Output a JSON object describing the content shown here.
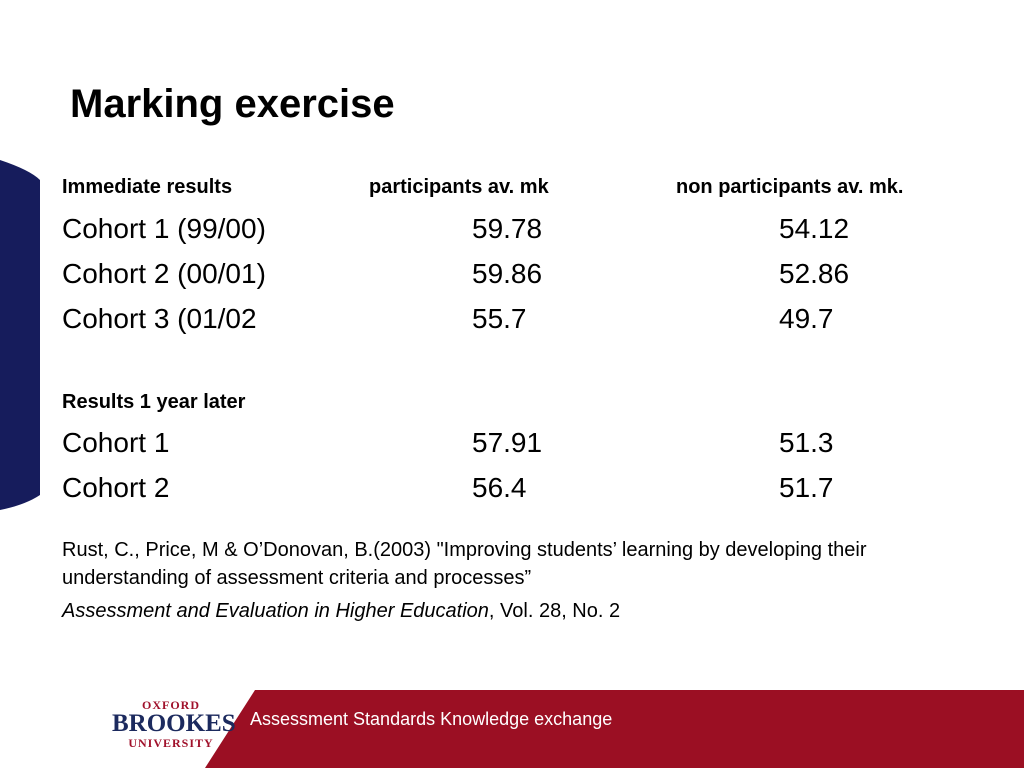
{
  "slide": {
    "title": "Marking exercise",
    "accent_color": "#161c5c",
    "footer_color": "#9b0f23"
  },
  "table": {
    "headers": [
      "Immediate results",
      "participants av. mk",
      "non participants av. mk."
    ],
    "immediate_rows": [
      {
        "label": "Cohort 1 (99/00)",
        "participants": "59.78",
        "non_participants": "54.12"
      },
      {
        "label": "Cohort 2 (00/01)",
        "participants": "59.86",
        "non_participants": "52.86"
      },
      {
        "label": "Cohort 3 (01/02",
        "participants": "55.7",
        "non_participants": "49.7"
      }
    ],
    "later_header": "Results 1 year later",
    "later_rows": [
      {
        "label": "Cohort 1",
        "participants": "57.91",
        "non_participants": "51.3"
      },
      {
        "label": "Cohort 2",
        "participants": "56.4",
        "non_participants": "51.7"
      }
    ]
  },
  "reference": {
    "line1": "Rust, C., Price, M & O’Donovan, B.(2003) \"Improving students’ learning by developing their understanding of assessment criteria and processes”",
    "journal": "Assessment and Evaluation in Higher Education",
    "volume": ", Vol. 28, No. 2"
  },
  "footer": {
    "text": "Assessment Standards Knowledge exchange",
    "logo": {
      "line1": "OXFORD",
      "line2": "BROOKES",
      "line3": "UNIVERSITY"
    }
  }
}
